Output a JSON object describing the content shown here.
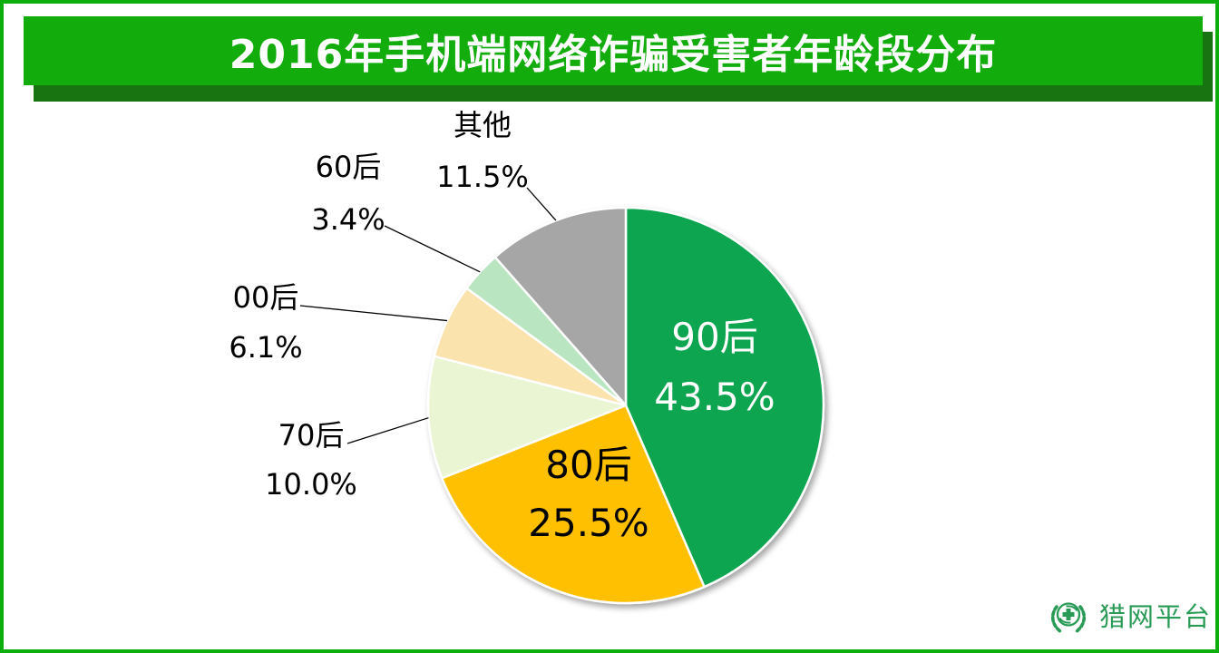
{
  "frame": {
    "border_color": "#0cae0c"
  },
  "header": {
    "title": "2016年手机端网络诈骗受害者年龄段分布",
    "bg_color": "#12ac0c",
    "shadow_color": "#187410",
    "text_color": "#ffffff"
  },
  "chart_data": {
    "type": "pie",
    "title": "2016年手机端网络诈骗受害者年龄段分布",
    "start_angle_deg": 0,
    "direction": "clockwise",
    "unit": "percent",
    "legend": "none",
    "separator_color": "#ffffff",
    "leader_line_color": "#000000",
    "segments": [
      {
        "label": "90后",
        "value": 43.5,
        "pct_label": "43.5%",
        "color": "#0ea550",
        "label_placement": "inside",
        "label_color": "#ffffff"
      },
      {
        "label": "80后",
        "value": 25.5,
        "pct_label": "25.5%",
        "color": "#fec001",
        "label_placement": "inside",
        "label_color": "#000000"
      },
      {
        "label": "70后",
        "value": 10.0,
        "pct_label": "10.0%",
        "color": "#eaf5d3",
        "label_placement": "outside",
        "label_color": "#000000"
      },
      {
        "label": "00后",
        "value": 6.1,
        "pct_label": "6.1%",
        "color": "#fae3ac",
        "label_placement": "outside",
        "label_color": "#000000"
      },
      {
        "label": "60后",
        "value": 3.4,
        "pct_label": "3.4%",
        "color": "#b9e6c1",
        "label_placement": "outside",
        "label_color": "#000000"
      },
      {
        "label": "其他",
        "value": 11.5,
        "pct_label": "11.5%",
        "color": "#a6a6a6",
        "label_placement": "outside",
        "label_color": "#000000"
      }
    ]
  },
  "footer": {
    "logo_text": "猎网平台",
    "logo_color": "#2a9b57"
  }
}
